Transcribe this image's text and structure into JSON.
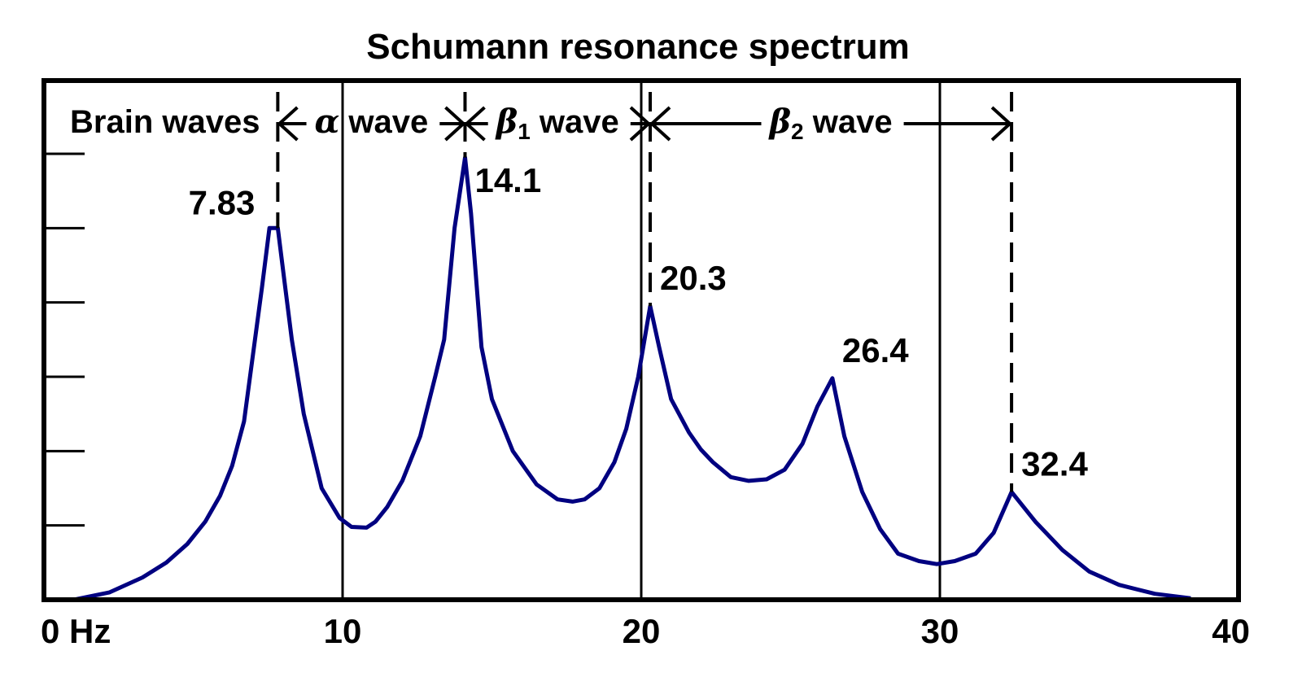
{
  "chart_data": {
    "type": "line",
    "title": "Schumann resonance spectrum",
    "xlabel": "",
    "ylabel": "",
    "xlim": [
      0,
      40
    ],
    "ylim": [
      0,
      6
    ],
    "x_unit": "Hz",
    "x_ticks": [
      {
        "value": 0,
        "label": "0 Hz"
      },
      {
        "value": 10,
        "label": "10"
      },
      {
        "value": 20,
        "label": "20"
      },
      {
        "value": 30,
        "label": "30"
      },
      {
        "value": 40,
        "label": "40"
      }
    ],
    "y_ticks": [
      1,
      2,
      3,
      4,
      5,
      6
    ],
    "y_tick_labels_shown": false,
    "grid": "vertical lines at 10, 20, 30",
    "series": [
      {
        "color": "#000080",
        "points": [
          [
            1.0,
            0.0
          ],
          [
            2.2,
            0.1
          ],
          [
            3.3,
            0.3
          ],
          [
            4.1,
            0.5
          ],
          [
            4.8,
            0.75
          ],
          [
            5.4,
            1.05
          ],
          [
            5.9,
            1.4
          ],
          [
            6.3,
            1.8
          ],
          [
            6.7,
            2.4
          ],
          [
            7.0,
            3.3
          ],
          [
            7.3,
            4.2
          ],
          [
            7.55,
            5.0
          ],
          [
            7.83,
            5.0
          ],
          [
            8.05,
            4.3
          ],
          [
            8.3,
            3.5
          ],
          [
            8.7,
            2.5
          ],
          [
            9.3,
            1.5
          ],
          [
            9.9,
            1.1
          ],
          [
            10.3,
            0.98
          ],
          [
            10.8,
            0.97
          ],
          [
            11.1,
            1.05
          ],
          [
            11.5,
            1.25
          ],
          [
            12.0,
            1.6
          ],
          [
            12.6,
            2.2
          ],
          [
            13.1,
            3.0
          ],
          [
            13.4,
            3.5
          ],
          [
            13.75,
            5.0
          ],
          [
            14.1,
            5.95
          ],
          [
            14.3,
            5.2
          ],
          [
            14.65,
            3.4
          ],
          [
            15.0,
            2.7
          ],
          [
            15.7,
            2.0
          ],
          [
            16.5,
            1.55
          ],
          [
            17.2,
            1.35
          ],
          [
            17.7,
            1.32
          ],
          [
            18.1,
            1.35
          ],
          [
            18.6,
            1.5
          ],
          [
            19.1,
            1.85
          ],
          [
            19.5,
            2.3
          ],
          [
            19.9,
            3.0
          ],
          [
            20.3,
            3.95
          ],
          [
            20.6,
            3.4
          ],
          [
            21.0,
            2.7
          ],
          [
            21.6,
            2.25
          ],
          [
            22.0,
            2.02
          ],
          [
            22.4,
            1.85
          ],
          [
            23.0,
            1.65
          ],
          [
            23.6,
            1.6
          ],
          [
            24.2,
            1.62
          ],
          [
            24.8,
            1.75
          ],
          [
            25.4,
            2.1
          ],
          [
            25.9,
            2.6
          ],
          [
            26.4,
            2.98
          ],
          [
            26.8,
            2.2
          ],
          [
            27.4,
            1.45
          ],
          [
            28.0,
            0.95
          ],
          [
            28.6,
            0.62
          ],
          [
            29.3,
            0.52
          ],
          [
            29.9,
            0.48
          ],
          [
            30.5,
            0.52
          ],
          [
            31.2,
            0.62
          ],
          [
            31.8,
            0.9
          ],
          [
            32.4,
            1.45
          ],
          [
            33.2,
            1.05
          ],
          [
            34.1,
            0.67
          ],
          [
            35.0,
            0.38
          ],
          [
            36.0,
            0.2
          ],
          [
            37.2,
            0.08
          ],
          [
            38.4,
            0.02
          ]
        ]
      }
    ],
    "peaks": [
      {
        "x": 7.83,
        "label": "7.83"
      },
      {
        "x": 14.1,
        "label": "14.1"
      },
      {
        "x": 20.3,
        "label": "20.3"
      },
      {
        "x": 26.4,
        "label": "26.4"
      },
      {
        "x": 32.4,
        "label": "32.4"
      }
    ],
    "band_boundaries": [
      7.83,
      14.1,
      20.3,
      32.4
    ],
    "bands_heading": "Brain waves",
    "bands": [
      {
        "greek": "α",
        "subscript": "",
        "text": "wave",
        "from": 7.83,
        "to": 14.1
      },
      {
        "greek": "β",
        "subscript": "1",
        "text": "wave",
        "from": 14.1,
        "to": 20.3
      },
      {
        "greek": "β",
        "subscript": "2",
        "text": "wave",
        "from": 20.3,
        "to": 32.4
      }
    ]
  }
}
